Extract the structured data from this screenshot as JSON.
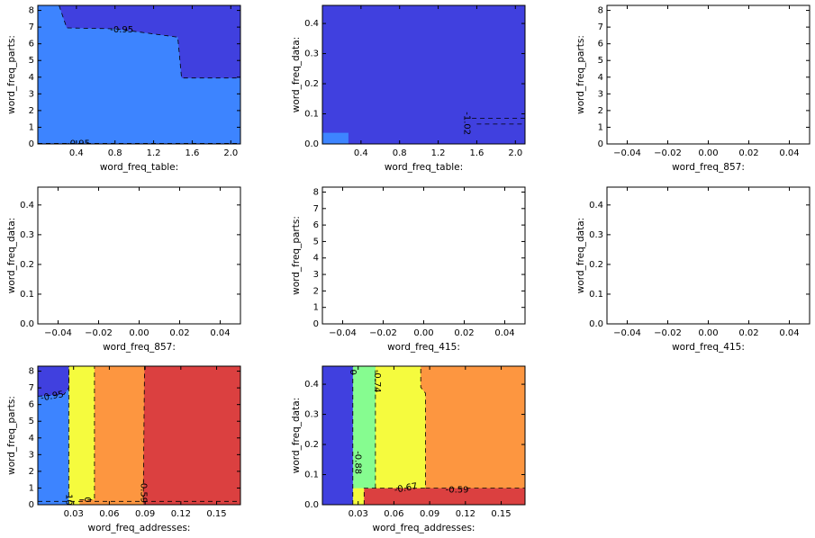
{
  "colors": {
    "navy": "#4040df",
    "blue": "#3d84ff",
    "green": "#86fc90",
    "yellow": "#f5fb3e",
    "orange": "#fd9640",
    "red": "#db4040"
  },
  "chart_data": [
    {
      "type": "contour",
      "xlabel": "word_freq_table:",
      "ylabel": "word_freq_parts:",
      "xlim": [
        0,
        2.1
      ],
      "ylim": [
        0,
        8.3
      ],
      "xticks": [
        0.4,
        0.8,
        1.2,
        1.6,
        2.0
      ],
      "xtick_labels": [
        "0.4",
        "0.8",
        "1.2",
        "1.6",
        "2.0"
      ],
      "yticks": [
        0,
        1,
        2,
        3,
        4,
        5,
        6,
        7,
        8
      ],
      "ytick_labels": [
        "0",
        "1",
        "2",
        "3",
        "4",
        "5",
        "6",
        "7",
        "8"
      ],
      "regions": [
        {
          "color": "navy",
          "points": [
            [
              0,
              0
            ],
            [
              2.1,
              0
            ],
            [
              2.1,
              8.3
            ],
            [
              0,
              8.3
            ]
          ]
        },
        {
          "color": "blue",
          "points": [
            [
              0,
              0.03
            ],
            [
              2.1,
              0.03
            ],
            [
              2.1,
              3.95
            ],
            [
              1.49,
              3.95
            ],
            [
              1.45,
              6.4
            ],
            [
              0.8,
              6.9
            ],
            [
              0.3,
              6.95
            ],
            [
              0.22,
              8.3
            ],
            [
              0,
              8.3
            ]
          ]
        }
      ],
      "contours": [
        {
          "points": [
            [
              0.22,
              8.3
            ],
            [
              0.3,
              6.95
            ],
            [
              0.8,
              6.9
            ],
            [
              1.45,
              6.4
            ],
            [
              1.49,
              3.95
            ],
            [
              2.1,
              3.95
            ]
          ]
        },
        {
          "points": [
            [
              0,
              0.03
            ],
            [
              2.1,
              0.03
            ]
          ]
        }
      ],
      "labels": [
        {
          "text": "-0.95",
          "x": 0.87,
          "y": 6.85,
          "rotate": 0
        },
        {
          "text": "-0.95",
          "x": 0.42,
          "y": 0.03,
          "rotate": 0
        }
      ]
    },
    {
      "type": "contour",
      "xlabel": "word_freq_table:",
      "ylabel": "word_freq_data:",
      "xlim": [
        0,
        2.1
      ],
      "ylim": [
        0,
        0.46
      ],
      "xticks": [
        0.4,
        0.8,
        1.2,
        1.6,
        2.0
      ],
      "xtick_labels": [
        "0.4",
        "0.8",
        "1.2",
        "1.6",
        "2.0"
      ],
      "yticks": [
        0,
        0.1,
        0.2,
        0.3,
        0.4
      ],
      "ytick_labels": [
        "0.0",
        "0.1",
        "0.2",
        "0.3",
        "0.4"
      ],
      "regions": [
        {
          "color": "navy",
          "points": [
            [
              0,
              0
            ],
            [
              2.1,
              0
            ],
            [
              2.1,
              0.46
            ],
            [
              0,
              0.46
            ]
          ]
        },
        {
          "color": "blue",
          "points": [
            [
              0,
              0
            ],
            [
              0.27,
              0
            ],
            [
              0.27,
              0.037
            ],
            [
              0,
              0.037
            ]
          ]
        }
      ],
      "contours": [
        {
          "points": [
            [
              1.55,
              0.085
            ],
            [
              2.1,
              0.085
            ]
          ]
        },
        {
          "points": [
            [
              1.6,
              0.066
            ],
            [
              2.1,
              0.066
            ]
          ]
        }
      ],
      "labels": [
        {
          "text": "-1.02",
          "x": 1.5,
          "y": 0.068,
          "rotate": 90
        }
      ]
    },
    {
      "type": "empty",
      "xlabel": "word_freq_857:",
      "ylabel": "word_freq_parts:",
      "xlim": [
        -0.05,
        0.05
      ],
      "ylim": [
        0,
        8.3
      ],
      "xticks": [
        -0.04,
        -0.02,
        0.0,
        0.02,
        0.04
      ],
      "xtick_labels": [
        "−0.04",
        "−0.02",
        "0.00",
        "0.02",
        "0.04"
      ],
      "yticks": [
        0,
        1,
        2,
        3,
        4,
        5,
        6,
        7,
        8
      ],
      "ytick_labels": [
        "0",
        "1",
        "2",
        "3",
        "4",
        "5",
        "6",
        "7",
        "8"
      ],
      "regions": [],
      "contours": [],
      "labels": []
    },
    {
      "type": "empty",
      "xlabel": "word_freq_857:",
      "ylabel": "word_freq_data:",
      "xlim": [
        -0.05,
        0.05
      ],
      "ylim": [
        0,
        0.46
      ],
      "xticks": [
        -0.04,
        -0.02,
        0.0,
        0.02,
        0.04
      ],
      "xtick_labels": [
        "−0.04",
        "−0.02",
        "0.00",
        "0.02",
        "0.04"
      ],
      "yticks": [
        0,
        0.1,
        0.2,
        0.3,
        0.4
      ],
      "ytick_labels": [
        "0.0",
        "0.1",
        "0.2",
        "0.3",
        "0.4"
      ],
      "regions": [],
      "contours": [],
      "labels": []
    },
    {
      "type": "empty",
      "xlabel": "word_freq_415:",
      "ylabel": "word_freq_parts:",
      "xlim": [
        -0.05,
        0.05
      ],
      "ylim": [
        0,
        8.3
      ],
      "xticks": [
        -0.04,
        -0.02,
        0.0,
        0.02,
        0.04
      ],
      "xtick_labels": [
        "−0.04",
        "−0.02",
        "0.00",
        "0.02",
        "0.04"
      ],
      "yticks": [
        0,
        1,
        2,
        3,
        4,
        5,
        6,
        7,
        8
      ],
      "ytick_labels": [
        "0",
        "1",
        "2",
        "3",
        "4",
        "5",
        "6",
        "7",
        "8"
      ],
      "regions": [],
      "contours": [],
      "labels": []
    },
    {
      "type": "empty",
      "xlabel": "word_freq_415:",
      "ylabel": "word_freq_data:",
      "xlim": [
        -0.05,
        0.05
      ],
      "ylim": [
        0,
        0.46
      ],
      "xticks": [
        -0.04,
        -0.02,
        0.0,
        0.02,
        0.04
      ],
      "xtick_labels": [
        "−0.04",
        "−0.02",
        "0.00",
        "0.02",
        "0.04"
      ],
      "yticks": [
        0,
        0.1,
        0.2,
        0.3,
        0.4
      ],
      "ytick_labels": [
        "0.0",
        "0.1",
        "0.2",
        "0.3",
        "0.4"
      ],
      "regions": [],
      "contours": [],
      "labels": []
    },
    {
      "type": "contour",
      "xlabel": "word_freq_addresses:",
      "ylabel": "word_freq_parts:",
      "xlim": [
        0,
        0.17
      ],
      "ylim": [
        0,
        8.3
      ],
      "xticks": [
        0.03,
        0.06,
        0.09,
        0.12,
        0.15
      ],
      "xtick_labels": [
        "0.03",
        "0.06",
        "0.09",
        "0.12",
        "0.15"
      ],
      "yticks": [
        0,
        1,
        2,
        3,
        4,
        5,
        6,
        7,
        8
      ],
      "ytick_labels": [
        "0",
        "1",
        "2",
        "3",
        "4",
        "5",
        "6",
        "7",
        "8"
      ],
      "regions": [
        {
          "color": "red",
          "points": [
            [
              0,
              0
            ],
            [
              0.17,
              0
            ],
            [
              0.17,
              8.3
            ],
            [
              0,
              8.3
            ]
          ]
        },
        {
          "color": "orange",
          "points": [
            [
              0,
              0
            ],
            [
              0.0885,
              0
            ],
            [
              0.0885,
              0.3
            ],
            [
              0.0895,
              8.3
            ],
            [
              0,
              8.3
            ]
          ]
        },
        {
          "color": "yellow",
          "points": [
            [
              0,
              0
            ],
            [
              0.035,
              0
            ],
            [
              0.035,
              0.3
            ],
            [
              0.0475,
              0.3
            ],
            [
              0.0475,
              8.3
            ],
            [
              0,
              8.3
            ]
          ]
        },
        {
          "color": "blue",
          "points": [
            [
              0,
              0
            ],
            [
              0.026,
              0
            ],
            [
              0.026,
              8.3
            ],
            [
              0,
              8.3
            ]
          ]
        },
        {
          "color": "navy",
          "points": [
            [
              0,
              6.5
            ],
            [
              0.022,
              6.6
            ],
            [
              0.026,
              7.0
            ],
            [
              0.026,
              8.3
            ],
            [
              0,
              8.3
            ]
          ]
        }
      ],
      "contours": [
        {
          "points": [
            [
              0,
              6.5
            ],
            [
              0.022,
              6.6
            ],
            [
              0.026,
              7.0
            ],
            [
              0.026,
              8.3
            ]
          ]
        },
        {
          "points": [
            [
              0.026,
              0
            ],
            [
              0.026,
              8.3
            ]
          ]
        },
        {
          "points": [
            [
              0.035,
              0.3
            ],
            [
              0.0475,
              0.3
            ],
            [
              0.0475,
              8.3
            ]
          ]
        },
        {
          "points": [
            [
              0.0885,
              0.3
            ],
            [
              0.0895,
              8.3
            ]
          ]
        },
        {
          "points": [
            [
              0,
              0.2
            ],
            [
              0.17,
              0.2
            ]
          ]
        }
      ],
      "labels": [
        {
          "text": "-0.95",
          "x": 0.012,
          "y": 6.5,
          "rotate": -10
        },
        {
          "text": "-0.59",
          "x": 0.0888,
          "y": 0.8,
          "rotate": 90
        },
        {
          "text": "0",
          "x": 0.0415,
          "y": 0.3,
          "rotate": 90
        },
        {
          "text": "10",
          "x": 0.026,
          "y": 0.3,
          "rotate": 90
        }
      ]
    },
    {
      "type": "contour",
      "xlabel": "word_freq_addresses:",
      "ylabel": "word_freq_data:",
      "xlim": [
        0,
        0.17
      ],
      "ylim": [
        0,
        0.46
      ],
      "xticks": [
        0.03,
        0.06,
        0.09,
        0.12,
        0.15
      ],
      "xtick_labels": [
        "0.03",
        "0.06",
        "0.09",
        "0.12",
        "0.15"
      ],
      "yticks": [
        0,
        0.1,
        0.2,
        0.3,
        0.4
      ],
      "ytick_labels": [
        "0.0",
        "0.1",
        "0.2",
        "0.3",
        "0.4"
      ],
      "regions": [
        {
          "color": "red",
          "points": [
            [
              0,
              0
            ],
            [
              0.17,
              0
            ],
            [
              0.17,
              0.46
            ],
            [
              0,
              0.46
            ]
          ]
        },
        {
          "color": "orange",
          "points": [
            [
              0,
              0.055
            ],
            [
              0.17,
              0.055
            ],
            [
              0.17,
              0.46
            ],
            [
              0,
              0.46
            ]
          ]
        },
        {
          "color": "yellow",
          "points": [
            [
              0,
              0
            ],
            [
              0.035,
              0
            ],
            [
              0.035,
              0.055
            ],
            [
              0.0865,
              0.055
            ],
            [
              0.0865,
              0.37
            ],
            [
              0.0825,
              0.39
            ],
            [
              0.0825,
              0.46
            ],
            [
              0,
              0.46
            ]
          ]
        },
        {
          "color": "green",
          "points": [
            [
              0,
              0.055
            ],
            [
              0.0445,
              0.055
            ],
            [
              0.0445,
              0.46
            ],
            [
              0,
              0.46
            ]
          ]
        },
        {
          "color": "blue",
          "points": [
            [
              0,
              0
            ],
            [
              0.0255,
              0
            ],
            [
              0.0255,
              0.46
            ],
            [
              0,
              0.46
            ]
          ]
        },
        {
          "color": "navy",
          "points": [
            [
              0,
              0
            ],
            [
              0.0255,
              0
            ],
            [
              0.0255,
              0.46
            ],
            [
              0,
              0.46
            ]
          ]
        }
      ],
      "contours": [
        {
          "points": [
            [
              0.0255,
              0
            ],
            [
              0.0255,
              0.46
            ]
          ]
        },
        {
          "points": [
            [
              0.0445,
              0.055
            ],
            [
              0.0445,
              0.46
            ]
          ]
        },
        {
          "points": [
            [
              0.035,
              0
            ],
            [
              0.035,
              0.055
            ],
            [
              0.0865,
              0.055
            ],
            [
              0.0865,
              0.37
            ],
            [
              0.0825,
              0.39
            ],
            [
              0.0825,
              0.46
            ]
          ]
        },
        {
          "points": [
            [
              0.0865,
              0.055
            ],
            [
              0.17,
              0.055
            ]
          ]
        }
      ],
      "labels": [
        {
          "text": "0",
          "x": 0.0255,
          "y": 0.44,
          "rotate": 90
        },
        {
          "text": "-0.74",
          "x": 0.046,
          "y": 0.41,
          "rotate": 90
        },
        {
          "text": "-0.88",
          "x": 0.03,
          "y": 0.14,
          "rotate": 90
        },
        {
          "text": "-0.67",
          "x": 0.07,
          "y": 0.055,
          "rotate": -10
        },
        {
          "text": "-0.59",
          "x": 0.113,
          "y": 0.05,
          "rotate": 0
        }
      ]
    }
  ]
}
